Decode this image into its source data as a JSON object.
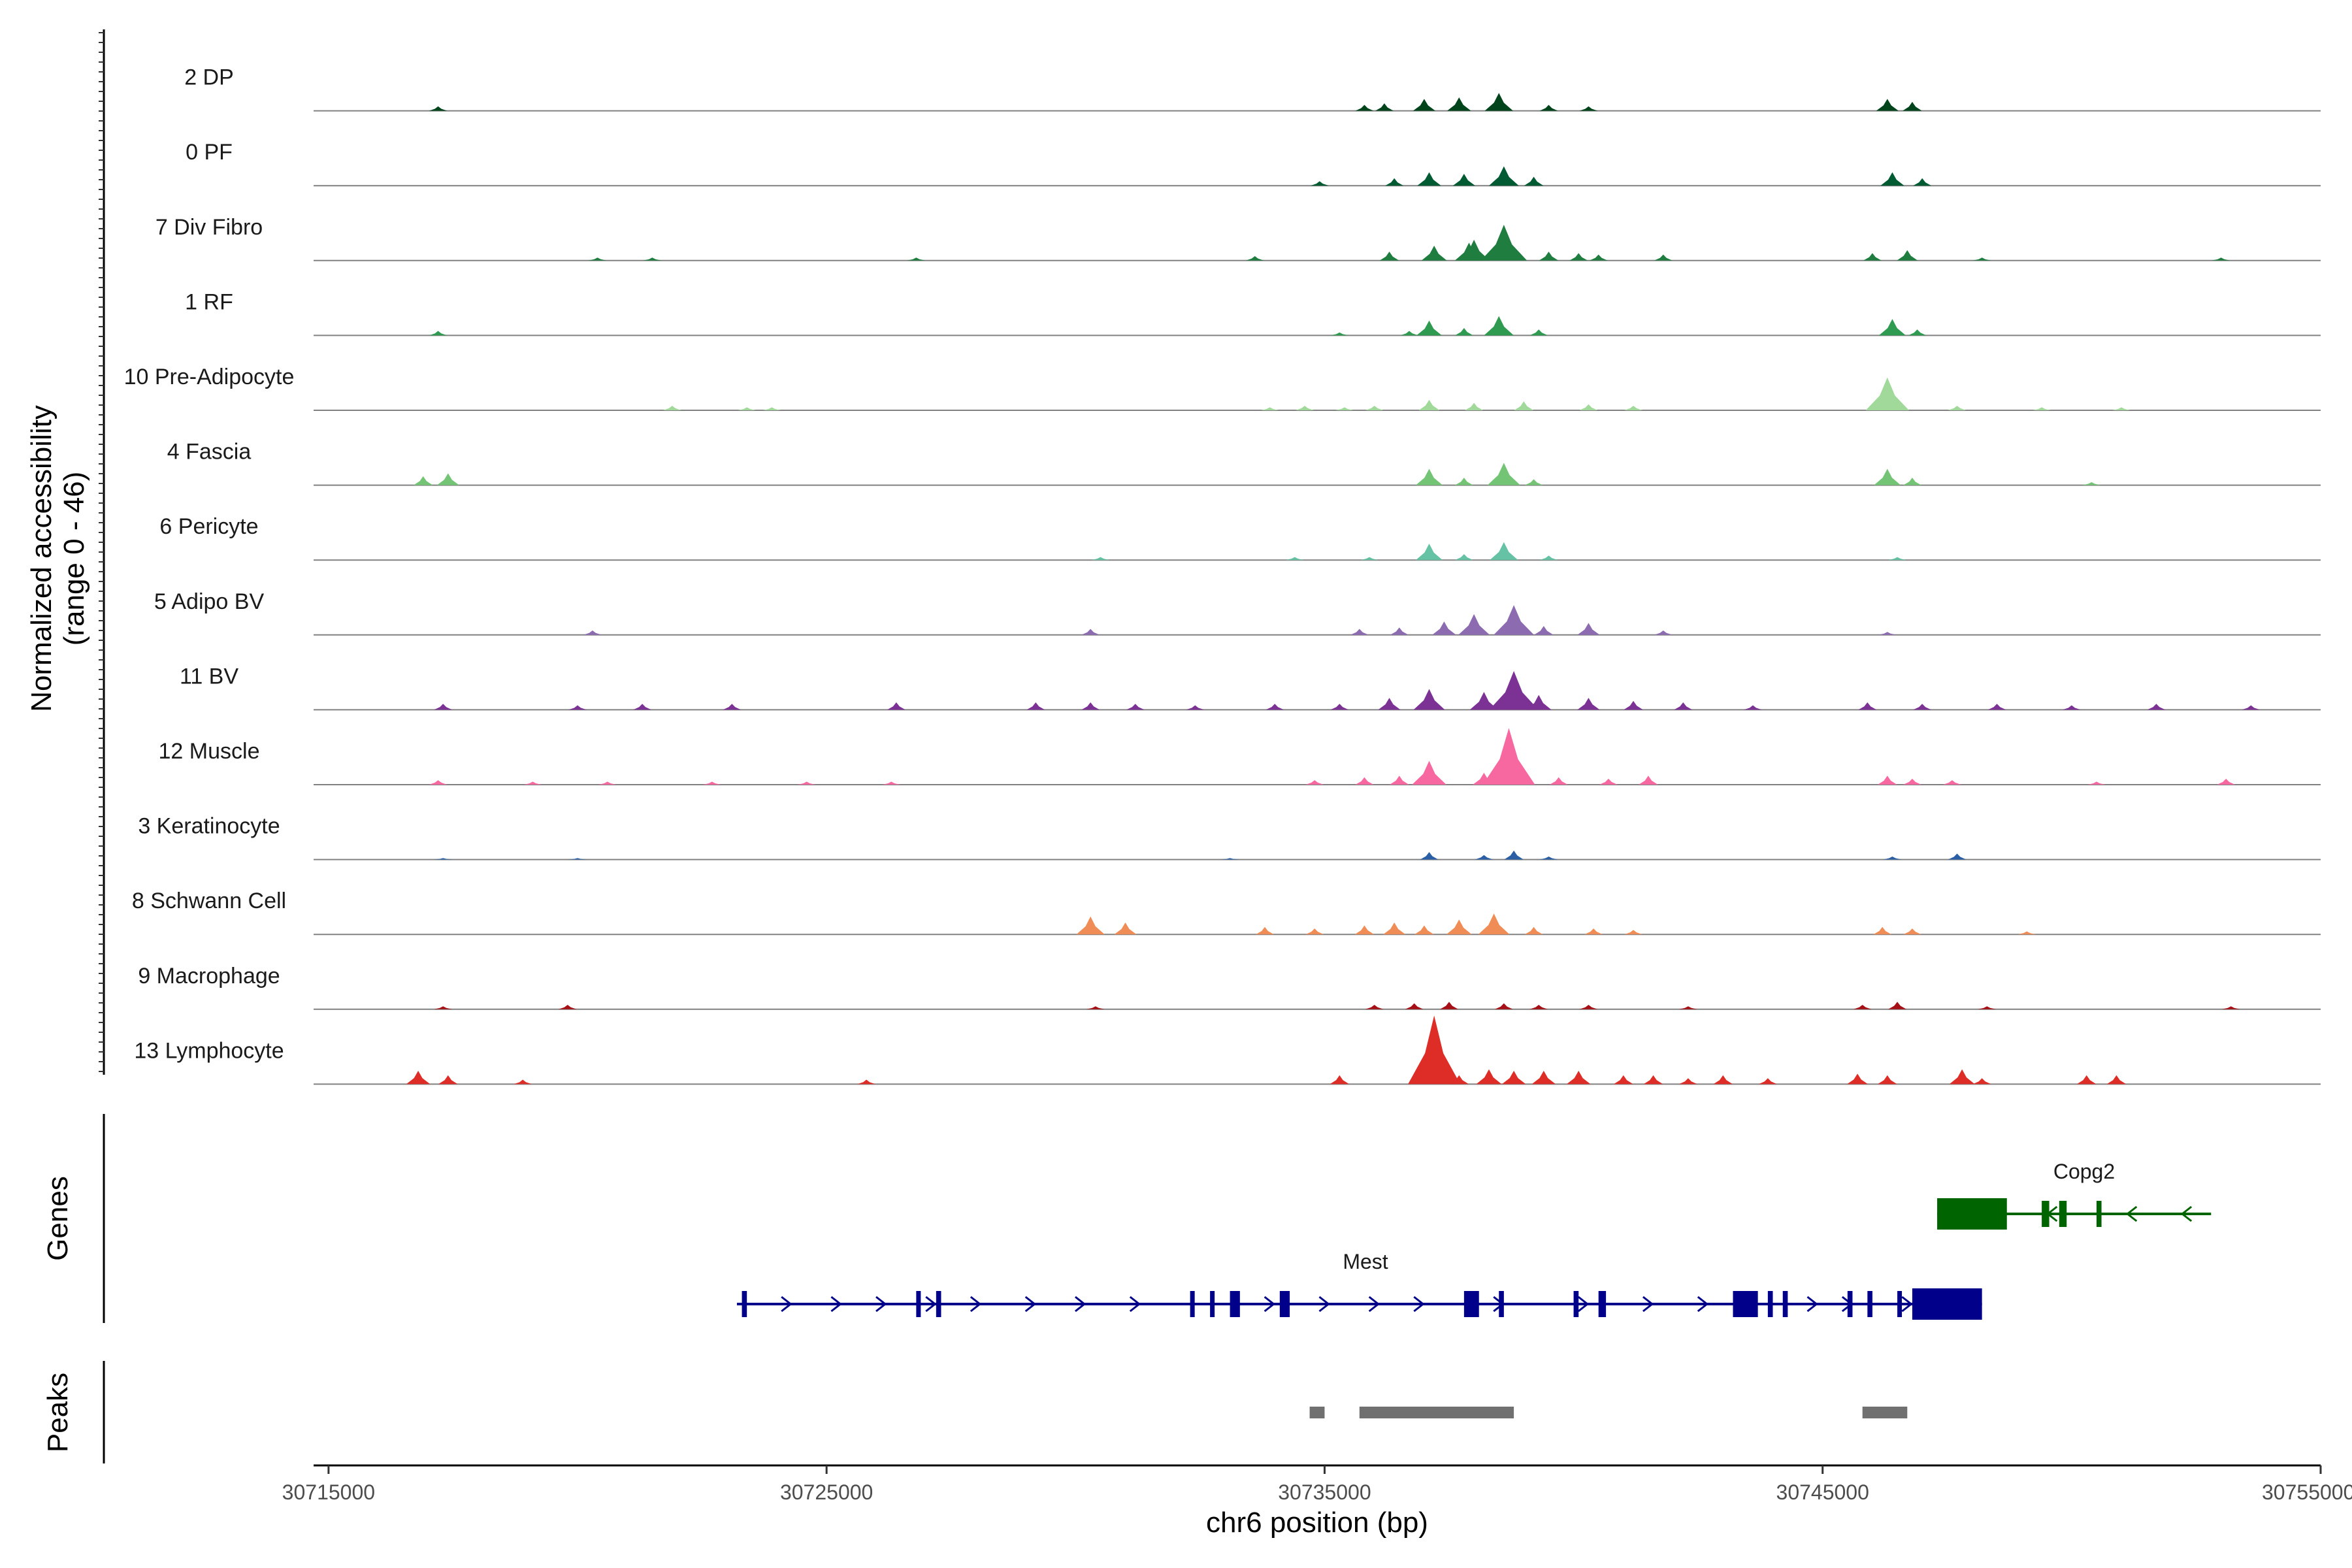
{
  "chart_data": {
    "type": "area",
    "title": "",
    "ylabel_line1": "Normalized accessibility",
    "ylabel_line2": "(range 0 - 46)",
    "yrange": [
      0,
      46
    ],
    "xlabel": "chr6 position (bp)",
    "xlim": [
      30714700,
      30755000
    ],
    "xticks": [
      30715000,
      30725000,
      30735000,
      30745000,
      30755000
    ],
    "xtick_labels": [
      "30715000",
      "30725000",
      "30735000",
      "30745000",
      "30755000"
    ],
    "tracks": [
      {
        "name": "2 DP",
        "color": "#00441b",
        "peaks": [
          [
            30717200,
            3
          ],
          [
            30737000,
            8
          ],
          [
            30737700,
            9
          ],
          [
            30738500,
            12
          ],
          [
            30736200,
            5
          ],
          [
            30735800,
            4
          ],
          [
            30739500,
            4
          ],
          [
            30740300,
            3
          ],
          [
            30746300,
            8
          ],
          [
            30746800,
            6
          ]
        ]
      },
      {
        "name": "0 PF",
        "color": "#005a32",
        "peaks": [
          [
            30734900,
            3
          ],
          [
            30736400,
            5
          ],
          [
            30737100,
            9
          ],
          [
            30737800,
            8
          ],
          [
            30738600,
            13
          ],
          [
            30739200,
            6
          ],
          [
            30746400,
            9
          ],
          [
            30747000,
            5
          ]
        ]
      },
      {
        "name": "7 Div Fibro",
        "color": "#1e7d3f",
        "peaks": [
          [
            30720400,
            2
          ],
          [
            30721500,
            2
          ],
          [
            30726800,
            2
          ],
          [
            30733600,
            3
          ],
          [
            30736300,
            6
          ],
          [
            30737200,
            10
          ],
          [
            30737900,
            12
          ],
          [
            30738600,
            24
          ],
          [
            30738000,
            14
          ],
          [
            30739500,
            6
          ],
          [
            30740100,
            5
          ],
          [
            30740500,
            4
          ],
          [
            30741800,
            4
          ],
          [
            30746000,
            5
          ],
          [
            30746700,
            7
          ],
          [
            30748200,
            2
          ],
          [
            30753000,
            2
          ]
        ]
      },
      {
        "name": "1 RF",
        "color": "#2e9b50",
        "peaks": [
          [
            30717200,
            3
          ],
          [
            30735300,
            2
          ],
          [
            30736700,
            3
          ],
          [
            30737100,
            10
          ],
          [
            30737800,
            5
          ],
          [
            30738500,
            13
          ],
          [
            30739300,
            4
          ],
          [
            30746400,
            11
          ],
          [
            30746900,
            4
          ]
        ]
      },
      {
        "name": "10 Pre-Adipocyte",
        "color": "#a1d99b",
        "peaks": [
          [
            30721900,
            3
          ],
          [
            30723400,
            2
          ],
          [
            30723900,
            2
          ],
          [
            30733900,
            2
          ],
          [
            30734600,
            3
          ],
          [
            30735400,
            2
          ],
          [
            30736000,
            3
          ],
          [
            30737100,
            7
          ],
          [
            30738000,
            5
          ],
          [
            30739000,
            6
          ],
          [
            30740300,
            4
          ],
          [
            30741200,
            3
          ],
          [
            30746300,
            22
          ],
          [
            30747700,
            3
          ],
          [
            30749400,
            2
          ],
          [
            30751000,
            2
          ]
        ]
      },
      {
        "name": "4 Fascia",
        "color": "#74c476",
        "peaks": [
          [
            30716900,
            6
          ],
          [
            30717400,
            8
          ],
          [
            30737100,
            11
          ],
          [
            30737800,
            5
          ],
          [
            30738600,
            15
          ],
          [
            30739200,
            4
          ],
          [
            30746300,
            11
          ],
          [
            30746800,
            5
          ],
          [
            30750400,
            2
          ]
        ]
      },
      {
        "name": "6 Pericyte",
        "color": "#66c2a4",
        "peaks": [
          [
            30730500,
            2
          ],
          [
            30734400,
            2
          ],
          [
            30735900,
            2
          ],
          [
            30737100,
            11
          ],
          [
            30737800,
            4
          ],
          [
            30738600,
            12
          ],
          [
            30739500,
            3
          ],
          [
            30746500,
            2
          ]
        ]
      },
      {
        "name": "5 Adipo BV",
        "color": "#8c6bb1",
        "peaks": [
          [
            30720300,
            3
          ],
          [
            30730300,
            4
          ],
          [
            30735700,
            4
          ],
          [
            30736500,
            5
          ],
          [
            30737400,
            9
          ],
          [
            30738000,
            14
          ],
          [
            30738800,
            20
          ],
          [
            30739400,
            6
          ],
          [
            30740300,
            8
          ],
          [
            30741800,
            3
          ],
          [
            30746300,
            2
          ]
        ]
      },
      {
        "name": "11 BV",
        "color": "#7b3294",
        "peaks": [
          [
            30717300,
            4
          ],
          [
            30720000,
            3
          ],
          [
            30721300,
            4
          ],
          [
            30723100,
            4
          ],
          [
            30726400,
            5
          ],
          [
            30729200,
            5
          ],
          [
            30730300,
            5
          ],
          [
            30731200,
            4
          ],
          [
            30732400,
            3
          ],
          [
            30734000,
            4
          ],
          [
            30735300,
            4
          ],
          [
            30736300,
            8
          ],
          [
            30737100,
            14
          ],
          [
            30738200,
            12
          ],
          [
            30738800,
            26
          ],
          [
            30739300,
            10
          ],
          [
            30740300,
            8
          ],
          [
            30741200,
            6
          ],
          [
            30742200,
            5
          ],
          [
            30743600,
            3
          ],
          [
            30745900,
            5
          ],
          [
            30747000,
            4
          ],
          [
            30748500,
            4
          ],
          [
            30750000,
            3
          ],
          [
            30751700,
            4
          ],
          [
            30753600,
            3
          ]
        ]
      },
      {
        "name": "12 Muscle",
        "color": "#f768a1",
        "peaks": [
          [
            30717200,
            3
          ],
          [
            30719100,
            2
          ],
          [
            30720600,
            2
          ],
          [
            30722700,
            2
          ],
          [
            30724600,
            2
          ],
          [
            30726300,
            2
          ],
          [
            30734800,
            3
          ],
          [
            30735800,
            5
          ],
          [
            30736500,
            6
          ],
          [
            30737100,
            16
          ],
          [
            30738200,
            8
          ],
          [
            30738700,
            38
          ],
          [
            30739700,
            5
          ],
          [
            30740700,
            4
          ],
          [
            30741500,
            6
          ],
          [
            30746300,
            6
          ],
          [
            30746800,
            4
          ],
          [
            30747600,
            3
          ],
          [
            30750500,
            2
          ],
          [
            30753100,
            4
          ]
        ]
      },
      {
        "name": "3 Keratinocyte",
        "color": "#2b5fa5",
        "peaks": [
          [
            30717300,
            1
          ],
          [
            30720000,
            1
          ],
          [
            30733100,
            1
          ],
          [
            30737100,
            5
          ],
          [
            30738200,
            3
          ],
          [
            30738800,
            6
          ],
          [
            30739500,
            2
          ],
          [
            30746400,
            2
          ],
          [
            30747700,
            4
          ]
        ]
      },
      {
        "name": "8 Schwann Cell",
        "color": "#f08c56",
        "peaks": [
          [
            30730300,
            12
          ],
          [
            30731000,
            8
          ],
          [
            30733800,
            5
          ],
          [
            30734800,
            4
          ],
          [
            30735800,
            6
          ],
          [
            30736400,
            8
          ],
          [
            30737000,
            6
          ],
          [
            30737700,
            10
          ],
          [
            30738400,
            14
          ],
          [
            30739200,
            5
          ],
          [
            30740400,
            4
          ],
          [
            30741200,
            3
          ],
          [
            30746200,
            5
          ],
          [
            30746800,
            4
          ],
          [
            30749100,
            2
          ]
        ]
      },
      {
        "name": "9 Macrophage",
        "color": "#a50f15",
        "peaks": [
          [
            30717300,
            2
          ],
          [
            30719800,
            3
          ],
          [
            30730400,
            2
          ],
          [
            30736000,
            3
          ],
          [
            30736800,
            4
          ],
          [
            30737500,
            5
          ],
          [
            30738600,
            4
          ],
          [
            30739300,
            3
          ],
          [
            30740300,
            3
          ],
          [
            30742300,
            2
          ],
          [
            30745800,
            3
          ],
          [
            30746500,
            5
          ],
          [
            30748300,
            2
          ],
          [
            30753200,
            2
          ]
        ]
      },
      {
        "name": "13 Lymphocyte",
        "color": "#de2d26",
        "peaks": [
          [
            30716800,
            9
          ],
          [
            30717400,
            6
          ],
          [
            30718900,
            3
          ],
          [
            30725800,
            3
          ],
          [
            30735300,
            6
          ],
          [
            30737200,
            46
          ],
          [
            30737700,
            6
          ],
          [
            30738300,
            10
          ],
          [
            30738800,
            9
          ],
          [
            30739400,
            9
          ],
          [
            30740100,
            9
          ],
          [
            30741000,
            6
          ],
          [
            30741600,
            6
          ],
          [
            30742300,
            4
          ],
          [
            30743000,
            6
          ],
          [
            30743900,
            4
          ],
          [
            30745700,
            7
          ],
          [
            30746300,
            6
          ],
          [
            30747800,
            10
          ],
          [
            30748200,
            4
          ],
          [
            30750300,
            6
          ],
          [
            30750900,
            6
          ]
        ]
      }
    ],
    "genes": [
      {
        "name": "Copg2",
        "strand": "-",
        "color": "#006400",
        "start": 30747300,
        "end": 30752800,
        "exons": [
          [
            30747300,
            30748700
          ],
          [
            30749400,
            30749550
          ],
          [
            30749750,
            30749900
          ],
          [
            30750500,
            30750600
          ]
        ],
        "arrows": [
          30749600,
          30751200,
          30752300
        ]
      },
      {
        "name": "Mest",
        "strand": "+",
        "color": "#00008b",
        "start": 30723200,
        "end": 30748200,
        "exons": [
          [
            30723300,
            30723400
          ],
          [
            30727200,
            30727300
          ],
          [
            30726800,
            30726850
          ],
          [
            30732300,
            30732350
          ],
          [
            30732700,
            30732760
          ],
          [
            30733100,
            30733300
          ],
          [
            30734100,
            30734300
          ],
          [
            30737800,
            30738100
          ],
          [
            30738500,
            30738600
          ],
          [
            30740000,
            30740100
          ],
          [
            30740500,
            30740650
          ],
          [
            30743200,
            30743700
          ],
          [
            30743900,
            30744000
          ],
          [
            30744200,
            30744300
          ],
          [
            30745500,
            30745600
          ],
          [
            30745900,
            30746000
          ],
          [
            30746500,
            30746550
          ],
          [
            30747000,
            30747050
          ],
          [
            30746800,
            30748200
          ]
        ],
        "arrows": [
          30724200,
          30725200,
          30726100,
          30727100,
          30728000,
          30729100,
          30730100,
          30731200,
          30733900,
          30735000,
          30736000,
          30736900,
          30738500,
          30740200,
          30741500,
          30742600,
          30744800,
          30745500,
          30746700
        ]
      }
    ],
    "peaks_track": [
      [
        30734700,
        30735000
      ],
      [
        30735700,
        30738800
      ],
      [
        30745800,
        30746700
      ]
    ],
    "section_labels": {
      "genes": "Genes",
      "peaks": "Peaks"
    }
  }
}
